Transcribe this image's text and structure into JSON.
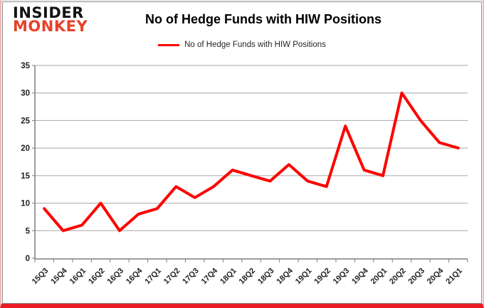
{
  "branding": {
    "line1": "INSIDER",
    "line2": "MONKEY"
  },
  "title": "No of Hedge Funds with HIW Positions",
  "legend": {
    "label": "No of Hedge Funds with HIW Positions"
  },
  "chart_data": {
    "type": "line",
    "title": "No of Hedge Funds with HIW Positions",
    "categories": [
      "15Q3",
      "15Q4",
      "16Q1",
      "16Q2",
      "16Q3",
      "16Q4",
      "17Q1",
      "17Q2",
      "17Q3",
      "17Q4",
      "18Q1",
      "18Q2",
      "18Q3",
      "18Q4",
      "19Q1",
      "19Q2",
      "19Q3",
      "19Q4",
      "20Q1",
      "20Q2",
      "20Q3",
      "20Q4",
      "21Q1"
    ],
    "series": [
      {
        "name": "No of Hedge Funds with HIW Positions",
        "color": "#ff0000",
        "values": [
          9,
          5,
          6,
          10,
          5,
          8,
          9,
          13,
          11,
          13,
          16,
          15,
          14,
          17,
          14,
          13,
          24,
          16,
          15,
          30,
          25,
          21,
          20
        ]
      }
    ],
    "xlabel": "",
    "ylabel": "",
    "ylim": [
      0,
      35
    ],
    "ytick_step": 5,
    "grid": true,
    "legend_position": "top",
    "x_label_rotation": 45
  },
  "colors": {
    "line": "#ff0000",
    "logo_red": "#e8402a",
    "grid": "#a6a6a6",
    "axis": "#7f7f7f",
    "tick_text": "#1f1f1f",
    "frame": "#8c8c8c",
    "outer_border_sides": "#f3b9b9",
    "outer_border_bottom": "#ec1c24"
  }
}
